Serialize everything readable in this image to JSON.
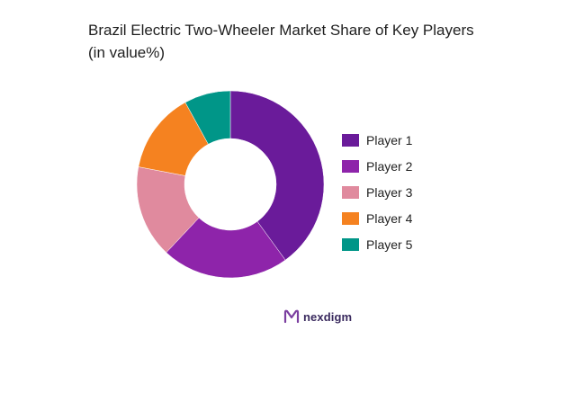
{
  "chart_data": {
    "type": "pie",
    "title": "Brazil Electric Two-Wheeler Market Share of Key Players",
    "subtitle": "(in value%)",
    "categories": [
      "Player 1",
      "Player 2",
      "Player 3",
      "Player 4",
      "Player 5"
    ],
    "values": [
      40,
      22,
      16,
      14,
      8
    ],
    "colors": [
      "#6a1b9a",
      "#8e24aa",
      "#e08a9e",
      "#f58220",
      "#009688"
    ],
    "donut": true,
    "legend_position": "right"
  },
  "brand": {
    "name": "nexdigm"
  }
}
